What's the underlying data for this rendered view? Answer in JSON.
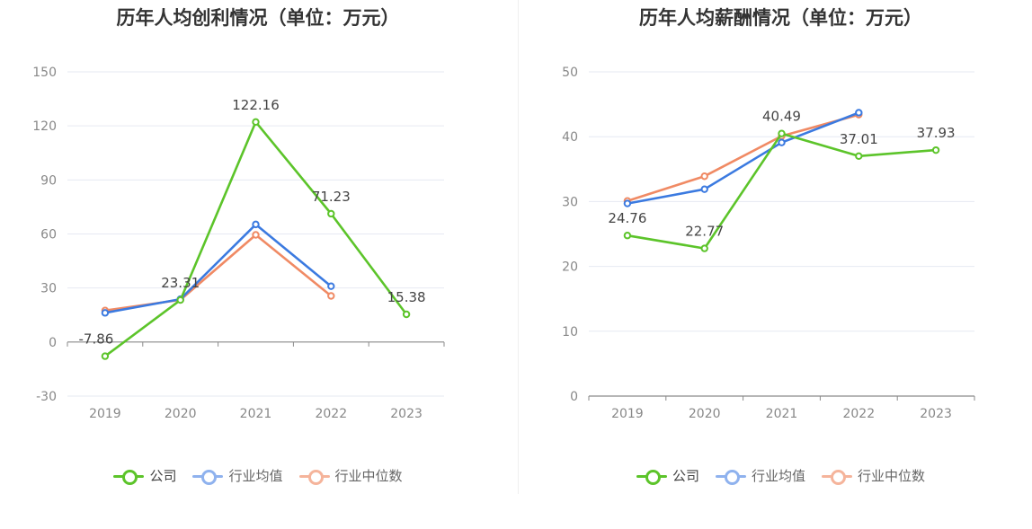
{
  "charts": [
    {
      "title": "历年人均创利情况（单位：万元）",
      "legend": [
        {
          "label": "公司",
          "color": "#5cc42a"
        },
        {
          "label": "行业均值",
          "color": "#3b7ae0"
        },
        {
          "label": "行业中位数",
          "color": "#f08a64"
        }
      ]
    },
    {
      "title": "历年人均薪酬情况（单位：万元）",
      "legend": [
        {
          "label": "公司",
          "color": "#5cc42a"
        },
        {
          "label": "行业均值",
          "color": "#3b7ae0"
        },
        {
          "label": "行业中位数",
          "color": "#f08a64"
        }
      ]
    }
  ],
  "chart_data": [
    {
      "type": "line",
      "title": "历年人均创利情况（单位：万元）",
      "categories": [
        "2019",
        "2020",
        "2021",
        "2022",
        "2023"
      ],
      "ylim": [
        -30,
        150
      ],
      "yticks": [
        -30,
        0,
        30,
        60,
        90,
        120,
        150
      ],
      "grid": true,
      "legend_position": "bottom",
      "series": [
        {
          "name": "公司",
          "color": "#5cc42a",
          "values": [
            -7.86,
            23.31,
            122.16,
            71.23,
            15.38
          ],
          "labels": [
            "-7.86",
            "23.31",
            "122.16",
            "71.23",
            "15.38"
          ]
        },
        {
          "name": "行业均值",
          "color": "#3b7ae0",
          "values": [
            16.2,
            23.8,
            65.3,
            31.0,
            null
          ]
        },
        {
          "name": "行业中位数",
          "color": "#f08a64",
          "values": [
            17.5,
            23.4,
            59.5,
            25.6,
            null
          ]
        }
      ]
    },
    {
      "type": "line",
      "title": "历年人均薪酬情况（单位：万元）",
      "categories": [
        "2019",
        "2020",
        "2021",
        "2022",
        "2023"
      ],
      "ylim": [
        0,
        50
      ],
      "yticks": [
        0,
        10,
        20,
        30,
        40,
        50
      ],
      "grid": true,
      "legend_position": "bottom",
      "series": [
        {
          "name": "公司",
          "color": "#5cc42a",
          "values": [
            24.76,
            22.77,
            40.49,
            37.01,
            37.93
          ],
          "labels": [
            "24.76",
            "22.77",
            "40.49",
            "37.01",
            "37.93"
          ]
        },
        {
          "name": "行业均值",
          "color": "#3b7ae0",
          "values": [
            29.7,
            31.9,
            39.1,
            43.7,
            null
          ]
        },
        {
          "name": "行业中位数",
          "color": "#f08a64",
          "values": [
            30.1,
            33.9,
            40.1,
            43.4,
            null
          ]
        }
      ]
    }
  ]
}
